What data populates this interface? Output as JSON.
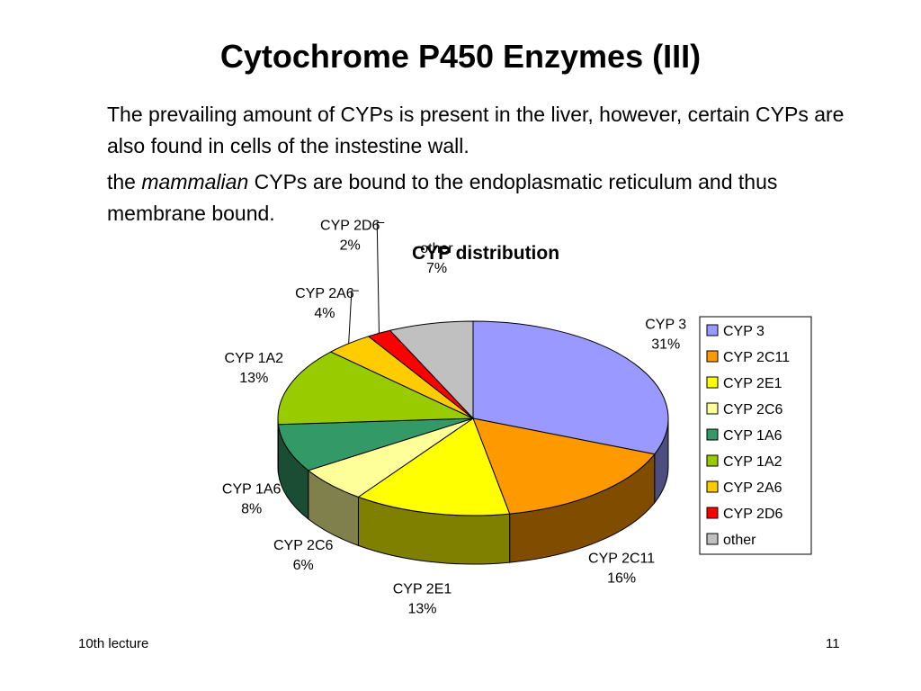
{
  "slide": {
    "title": "Cytochrome P450 Enzymes (III)",
    "paragraph1": "The prevailing amount of CYPs is present in the liver, however, certain CYPs are also found in cells of the instestine wall.",
    "paragraph2_prefix": "the ",
    "paragraph2_italic": "mammalian",
    "paragraph2_suffix": " CYPs are bound to the endoplasmatic reticulum and thus membrane bound.",
    "footer_left": "10th lecture",
    "footer_right": "11"
  },
  "chart_data": {
    "type": "pie",
    "title": "CYP distribution",
    "legend_position": "right",
    "series": [
      {
        "name": "CYP 3",
        "value": 31,
        "label": "31%",
        "color": "#9999ff"
      },
      {
        "name": "CYP 2C11",
        "value": 16,
        "label": "16%",
        "color": "#ff9900"
      },
      {
        "name": "CYP 2E1",
        "value": 13,
        "label": "13%",
        "color": "#ffff00"
      },
      {
        "name": "CYP 2C6",
        "value": 6,
        "label": "6%",
        "color": "#ffff99"
      },
      {
        "name": "CYP 1A6",
        "value": 8,
        "label": "8%",
        "color": "#339966"
      },
      {
        "name": "CYP 1A2",
        "value": 13,
        "label": "13%",
        "color": "#99cc00"
      },
      {
        "name": "CYP 2A6",
        "value": 4,
        "label": "4%",
        "color": "#ffcc00"
      },
      {
        "name": "CYP 2D6",
        "value": 2,
        "label": "2%",
        "color": "#ff0000"
      },
      {
        "name": "other",
        "value": 7,
        "label": "7%",
        "color": "#c0c0c0"
      }
    ]
  }
}
